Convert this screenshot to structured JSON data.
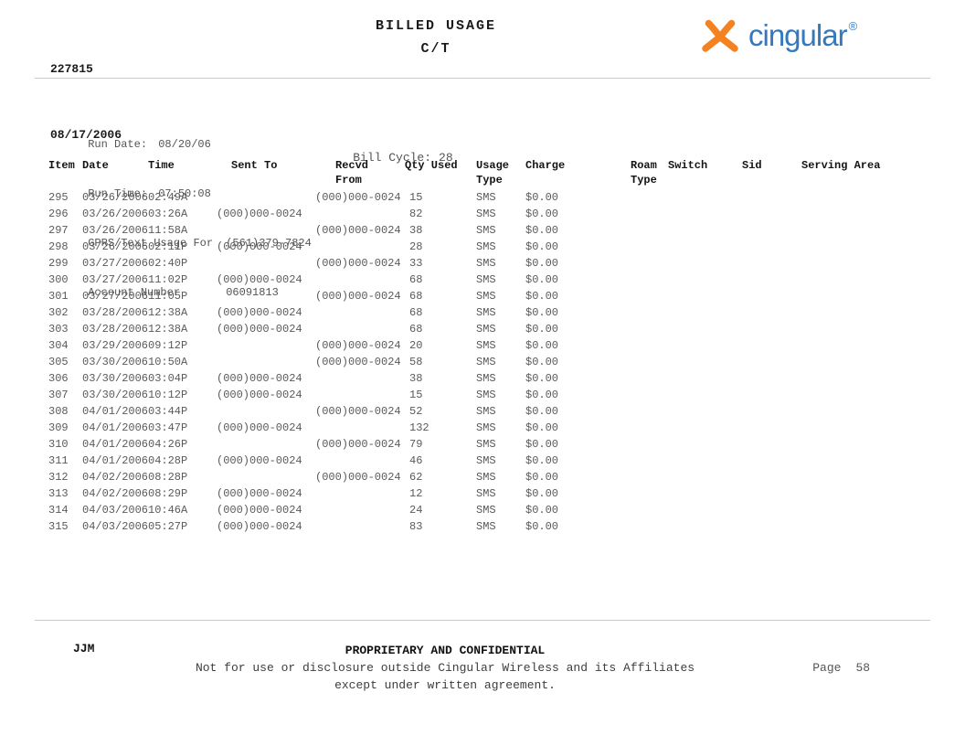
{
  "header": {
    "doc_number": "227815",
    "doc_date": "08/17/2006",
    "title_line1": "BILLED USAGE",
    "title_line2": "C/T"
  },
  "logo": {
    "brand": "cingular",
    "registered": "®",
    "orange": "#f58220",
    "blue": "#3478be"
  },
  "meta": {
    "run_date_label": "Run Date:",
    "run_date": "08/20/06",
    "run_time_label": "Run Time:",
    "run_time": "07:50:08",
    "usage_for_label": "GPRS/Text Usage For",
    "usage_for": "(561)379-7824",
    "account_label": "Account Number",
    "account": "06091813",
    "bill_cycle_label": "Bill Cycle:",
    "bill_cycle": "28"
  },
  "table": {
    "col_keys": [
      "item",
      "date",
      "time",
      "sent_to",
      "recvd_from",
      "qty_used",
      "usage_type",
      "charge"
    ],
    "header_line1": {
      "item": "Item",
      "date": "Date",
      "time": "Time",
      "sent_to": "Sent To",
      "recvd_from": "Recvd",
      "qty_used": "Qty Used",
      "usage_type": "Usage",
      "charge": "Charge",
      "roam_type": "Roam",
      "switch": "Switch",
      "sid": "Sid",
      "serving_area": "Serving Area"
    },
    "header_line2": {
      "recvd_from": "From",
      "usage_type": "Type",
      "roam_type": "Type"
    },
    "rows": [
      [
        "295",
        "03/26/2006",
        "02:49A",
        "",
        "(000)000-0024",
        "15",
        "SMS",
        "$0.00"
      ],
      [
        "296",
        "03/26/2006",
        "03:26A",
        "(000)000-0024",
        "",
        "82",
        "SMS",
        "$0.00"
      ],
      [
        "297",
        "03/26/2006",
        "11:58A",
        "",
        "(000)000-0024",
        "38",
        "SMS",
        "$0.00"
      ],
      [
        "298",
        "03/26/2006",
        "02:11P",
        "(000)000-0024",
        "",
        "28",
        "SMS",
        "$0.00"
      ],
      [
        "299",
        "03/27/2006",
        "02:40P",
        "",
        "(000)000-0024",
        "33",
        "SMS",
        "$0.00"
      ],
      [
        "300",
        "03/27/2006",
        "11:02P",
        "(000)000-0024",
        "",
        "68",
        "SMS",
        "$0.00"
      ],
      [
        "301",
        "03/27/2006",
        "11:05P",
        "",
        "(000)000-0024",
        "68",
        "SMS",
        "$0.00"
      ],
      [
        "302",
        "03/28/2006",
        "12:38A",
        "(000)000-0024",
        "",
        "68",
        "SMS",
        "$0.00"
      ],
      [
        "303",
        "03/28/2006",
        "12:38A",
        "(000)000-0024",
        "",
        "68",
        "SMS",
        "$0.00"
      ],
      [
        "304",
        "03/29/2006",
        "09:12P",
        "",
        "(000)000-0024",
        "20",
        "SMS",
        "$0.00"
      ],
      [
        "305",
        "03/30/2006",
        "10:50A",
        "",
        "(000)000-0024",
        "58",
        "SMS",
        "$0.00"
      ],
      [
        "306",
        "03/30/2006",
        "03:04P",
        "(000)000-0024",
        "",
        "38",
        "SMS",
        "$0.00"
      ],
      [
        "307",
        "03/30/2006",
        "10:12P",
        "(000)000-0024",
        "",
        "15",
        "SMS",
        "$0.00"
      ],
      [
        "308",
        "04/01/2006",
        "03:44P",
        "",
        "(000)000-0024",
        "52",
        "SMS",
        "$0.00"
      ],
      [
        "309",
        "04/01/2006",
        "03:47P",
        "(000)000-0024",
        "",
        "132",
        "SMS",
        "$0.00"
      ],
      [
        "310",
        "04/01/2006",
        "04:26P",
        "",
        "(000)000-0024",
        "79",
        "SMS",
        "$0.00"
      ],
      [
        "311",
        "04/01/2006",
        "04:28P",
        "(000)000-0024",
        "",
        "46",
        "SMS",
        "$0.00"
      ],
      [
        "312",
        "04/02/2006",
        "08:28P",
        "",
        "(000)000-0024",
        "62",
        "SMS",
        "$0.00"
      ],
      [
        "313",
        "04/02/2006",
        "08:29P",
        "(000)000-0024",
        "",
        "12",
        "SMS",
        "$0.00"
      ],
      [
        "314",
        "04/03/2006",
        "10:46A",
        "(000)000-0024",
        "",
        "24",
        "SMS",
        "$0.00"
      ],
      [
        "315",
        "04/03/2006",
        "05:27P",
        "(000)000-0024",
        "",
        "83",
        "SMS",
        "$0.00"
      ]
    ]
  },
  "footer": {
    "initials": "JJM",
    "line1": "PROPRIETARY AND CONFIDENTIAL",
    "line2": "Not for use or disclosure outside Cingular Wireless and its Affiliates",
    "line3": "except under written agreement.",
    "page_label": "Page",
    "page_number": "58"
  }
}
